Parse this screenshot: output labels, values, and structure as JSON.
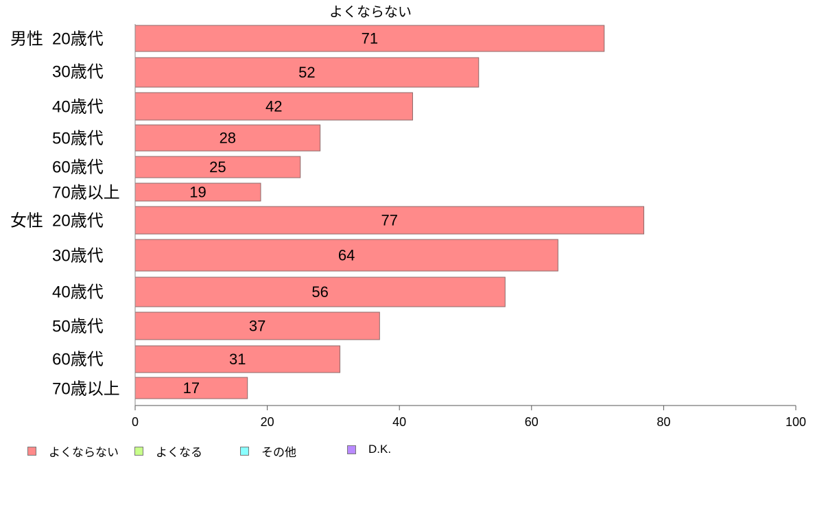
{
  "chart_data": {
    "type": "bar",
    "orientation": "horizontal",
    "title": "よくならない",
    "xlabel": "",
    "ylabel": "",
    "xlim": [
      0,
      100
    ],
    "xticks": [
      0,
      20,
      40,
      60,
      80,
      100
    ],
    "grid": false,
    "groups": [
      {
        "label": "男性",
        "categories": [
          "20歳代",
          "30歳代",
          "40歳代",
          "50歳代",
          "60歳代",
          "70歳以上"
        ]
      },
      {
        "label": "女性",
        "categories": [
          "20歳代",
          "30歳代",
          "40歳代",
          "50歳代",
          "60歳代",
          "70歳以上"
        ]
      }
    ],
    "categories": [
      "20歳代",
      "30歳代",
      "40歳代",
      "50歳代",
      "60歳代",
      "70歳以上",
      "20歳代",
      "30歳代",
      "40歳代",
      "50歳代",
      "60歳代",
      "70歳以上"
    ],
    "series": [
      {
        "name": "よくならない",
        "color": "#ff8a8a",
        "values": [
          71,
          52,
          42,
          28,
          25,
          19,
          77,
          64,
          56,
          37,
          31,
          17
        ]
      }
    ],
    "legend_position": "bottom-left",
    "legend": [
      {
        "label": "よくならない",
        "color": "#ff8a8a"
      },
      {
        "label": "よくなる",
        "color": "#c8ff8a"
      },
      {
        "label": "その他",
        "color": "#8affff"
      },
      {
        "label": "D.K.",
        "color": "#b98aff"
      }
    ]
  }
}
